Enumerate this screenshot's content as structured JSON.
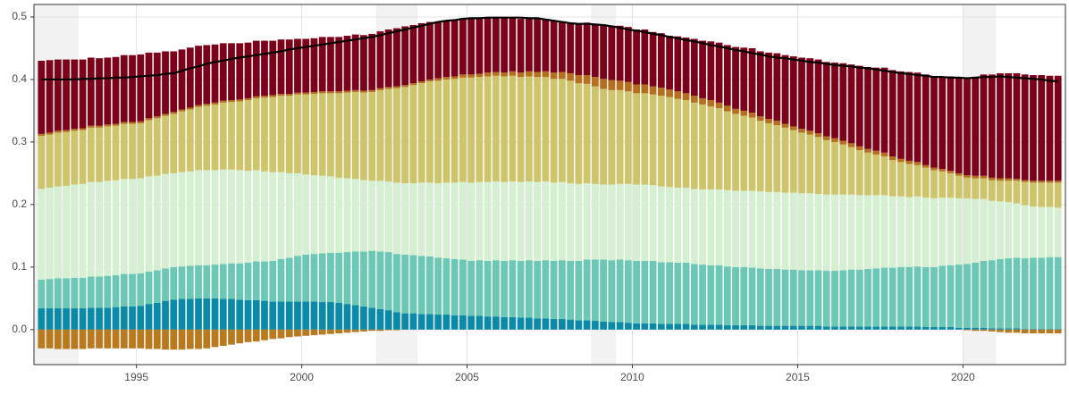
{
  "chart_data": {
    "type": "bar",
    "stacked": true,
    "x": [
      1992,
      1992.25,
      1992.5,
      1992.75,
      1993,
      1993.25,
      1993.5,
      1993.75,
      1994,
      1994.25,
      1994.5,
      1994.75,
      1995,
      1995.25,
      1995.5,
      1995.75,
      1996,
      1996.25,
      1996.5,
      1996.75,
      1997,
      1997.25,
      1997.5,
      1997.75,
      1998,
      1998.25,
      1998.5,
      1998.75,
      1999,
      1999.25,
      1999.5,
      1999.75,
      2000,
      2000.25,
      2000.5,
      2000.75,
      2001,
      2001.25,
      2001.5,
      2001.75,
      2002,
      2002.25,
      2002.5,
      2002.75,
      2003,
      2003.25,
      2003.5,
      2003.75,
      2004,
      2004.25,
      2004.5,
      2004.75,
      2005,
      2005.25,
      2005.5,
      2005.75,
      2006,
      2006.25,
      2006.5,
      2006.75,
      2007,
      2007.25,
      2007.5,
      2007.75,
      2008,
      2008.25,
      2008.5,
      2008.75,
      2009,
      2009.25,
      2009.5,
      2009.75,
      2010,
      2010.25,
      2010.5,
      2010.75,
      2011,
      2011.25,
      2011.5,
      2011.75,
      2012,
      2012.25,
      2012.5,
      2012.75,
      2013,
      2013.25,
      2013.5,
      2013.75,
      2014,
      2014.25,
      2014.5,
      2014.75,
      2015,
      2015.25,
      2015.5,
      2015.75,
      2016,
      2016.25,
      2016.5,
      2016.75,
      2017,
      2017.25,
      2017.5,
      2017.75,
      2018,
      2018.25,
      2018.5,
      2018.75,
      2019,
      2019.25,
      2019.5,
      2019.75,
      2020,
      2020.25,
      2020.5,
      2020.75,
      2021,
      2021.25,
      2021.5,
      2021.75,
      2022,
      2022.25,
      2022.5,
      2022.75
    ],
    "bar_span": 0.25,
    "series": [
      {
        "color": "#0b8aa8",
        "values": [
          0.034,
          0.034,
          0.034,
          0.034,
          0.034,
          0.034,
          0.035,
          0.035,
          0.035,
          0.036,
          0.037,
          0.037,
          0.038,
          0.041,
          0.043,
          0.046,
          0.048,
          0.049,
          0.049,
          0.05,
          0.05,
          0.05,
          0.049,
          0.049,
          0.048,
          0.047,
          0.047,
          0.046,
          0.045,
          0.045,
          0.045,
          0.045,
          0.045,
          0.045,
          0.044,
          0.044,
          0.043,
          0.041,
          0.039,
          0.037,
          0.035,
          0.033,
          0.031,
          0.028,
          0.026,
          0.026,
          0.025,
          0.025,
          0.024,
          0.024,
          0.023,
          0.023,
          0.022,
          0.022,
          0.021,
          0.021,
          0.02,
          0.02,
          0.019,
          0.019,
          0.018,
          0.018,
          0.017,
          0.017,
          0.016,
          0.015,
          0.015,
          0.014,
          0.013,
          0.012,
          0.012,
          0.011,
          0.01,
          0.01,
          0.01,
          0.009,
          0.009,
          0.009,
          0.009,
          0.008,
          0.008,
          0.008,
          0.008,
          0.007,
          0.007,
          0.007,
          0.007,
          0.006,
          0.006,
          0.006,
          0.006,
          0.006,
          0.006,
          0.006,
          0.006,
          0.005,
          0.005,
          0.005,
          0.005,
          0.005,
          0.005,
          0.005,
          0.005,
          0.005,
          0.005,
          0.005,
          0.005,
          0.004,
          0.004,
          0.004,
          0.004,
          0.003,
          0.003,
          0.003,
          0.003,
          0.002,
          0.002,
          0.002,
          0.002,
          0.001,
          0.001,
          0.001,
          0.001,
          0.001
        ]
      },
      {
        "color": "#6cc8b4",
        "values": [
          0.046,
          0.047,
          0.048,
          0.048,
          0.049,
          0.049,
          0.05,
          0.05,
          0.051,
          0.051,
          0.052,
          0.052,
          0.052,
          0.052,
          0.052,
          0.052,
          0.052,
          0.052,
          0.053,
          0.053,
          0.053,
          0.054,
          0.056,
          0.057,
          0.058,
          0.06,
          0.062,
          0.063,
          0.065,
          0.068,
          0.07,
          0.073,
          0.075,
          0.076,
          0.078,
          0.079,
          0.08,
          0.083,
          0.086,
          0.088,
          0.091,
          0.092,
          0.093,
          0.093,
          0.094,
          0.093,
          0.093,
          0.092,
          0.091,
          0.09,
          0.09,
          0.089,
          0.088,
          0.089,
          0.089,
          0.09,
          0.09,
          0.091,
          0.091,
          0.092,
          0.092,
          0.093,
          0.093,
          0.094,
          0.094,
          0.095,
          0.097,
          0.098,
          0.099,
          0.099,
          0.1,
          0.1,
          0.1,
          0.1,
          0.1,
          0.099,
          0.099,
          0.098,
          0.098,
          0.097,
          0.096,
          0.095,
          0.095,
          0.094,
          0.093,
          0.093,
          0.092,
          0.092,
          0.091,
          0.091,
          0.09,
          0.09,
          0.089,
          0.089,
          0.089,
          0.089,
          0.089,
          0.09,
          0.091,
          0.091,
          0.092,
          0.093,
          0.094,
          0.094,
          0.095,
          0.095,
          0.096,
          0.096,
          0.096,
          0.098,
          0.099,
          0.101,
          0.102,
          0.104,
          0.107,
          0.109,
          0.111,
          0.112,
          0.113,
          0.113,
          0.114,
          0.114,
          0.115,
          0.115
        ]
      },
      {
        "color": "#d5efd1",
        "values": [
          0.145,
          0.146,
          0.147,
          0.148,
          0.149,
          0.15,
          0.151,
          0.151,
          0.152,
          0.152,
          0.152,
          0.152,
          0.152,
          0.152,
          0.151,
          0.151,
          0.15,
          0.151,
          0.151,
          0.152,
          0.152,
          0.151,
          0.151,
          0.15,
          0.149,
          0.147,
          0.146,
          0.144,
          0.142,
          0.139,
          0.135,
          0.132,
          0.128,
          0.126,
          0.124,
          0.122,
          0.12,
          0.118,
          0.116,
          0.114,
          0.112,
          0.113,
          0.113,
          0.114,
          0.114,
          0.115,
          0.117,
          0.118,
          0.119,
          0.121,
          0.122,
          0.124,
          0.125,
          0.125,
          0.126,
          0.126,
          0.126,
          0.126,
          0.126,
          0.126,
          0.126,
          0.126,
          0.125,
          0.125,
          0.124,
          0.123,
          0.122,
          0.121,
          0.12,
          0.121,
          0.121,
          0.122,
          0.122,
          0.122,
          0.121,
          0.121,
          0.12,
          0.12,
          0.12,
          0.12,
          0.12,
          0.121,
          0.121,
          0.122,
          0.122,
          0.122,
          0.123,
          0.123,
          0.123,
          0.123,
          0.123,
          0.123,
          0.123,
          0.123,
          0.122,
          0.122,
          0.122,
          0.121,
          0.12,
          0.119,
          0.118,
          0.117,
          0.116,
          0.114,
          0.113,
          0.112,
          0.112,
          0.111,
          0.11,
          0.109,
          0.108,
          0.106,
          0.105,
          0.102,
          0.099,
          0.095,
          0.092,
          0.09,
          0.087,
          0.085,
          0.082,
          0.081,
          0.08,
          0.079
        ]
      },
      {
        "color": "#cdc46b",
        "values": [
          0.085,
          0.085,
          0.086,
          0.086,
          0.086,
          0.086,
          0.087,
          0.087,
          0.087,
          0.087,
          0.088,
          0.088,
          0.088,
          0.09,
          0.092,
          0.093,
          0.095,
          0.097,
          0.099,
          0.101,
          0.103,
          0.105,
          0.107,
          0.108,
          0.11,
          0.113,
          0.115,
          0.118,
          0.12,
          0.122,
          0.124,
          0.126,
          0.128,
          0.13,
          0.132,
          0.133,
          0.135,
          0.137,
          0.139,
          0.14,
          0.142,
          0.145,
          0.148,
          0.151,
          0.154,
          0.157,
          0.159,
          0.162,
          0.164,
          0.165,
          0.166,
          0.167,
          0.168,
          0.168,
          0.169,
          0.169,
          0.169,
          0.169,
          0.168,
          0.168,
          0.168,
          0.167,
          0.166,
          0.165,
          0.164,
          0.161,
          0.159,
          0.156,
          0.153,
          0.151,
          0.15,
          0.148,
          0.146,
          0.146,
          0.145,
          0.145,
          0.144,
          0.142,
          0.14,
          0.138,
          0.136,
          0.133,
          0.13,
          0.126,
          0.123,
          0.12,
          0.117,
          0.113,
          0.11,
          0.107,
          0.104,
          0.1,
          0.097,
          0.094,
          0.091,
          0.087,
          0.084,
          0.08,
          0.076,
          0.072,
          0.068,
          0.065,
          0.062,
          0.058,
          0.055,
          0.053,
          0.05,
          0.048,
          0.045,
          0.042,
          0.039,
          0.036,
          0.033,
          0.033,
          0.033,
          0.033,
          0.033,
          0.034,
          0.036,
          0.037,
          0.038,
          0.039,
          0.039,
          0.04
        ]
      },
      {
        "color": "#b5701f",
        "values": [
          0.003,
          0.003,
          0.003,
          0.003,
          0.003,
          0.003,
          0.003,
          0.003,
          0.003,
          0.003,
          0.003,
          0.003,
          0.003,
          0.003,
          0.003,
          0.003,
          0.003,
          0.003,
          0.003,
          0.003,
          0.003,
          0.003,
          0.003,
          0.003,
          0.003,
          0.003,
          0.003,
          0.003,
          0.003,
          0.003,
          0.003,
          0.003,
          0.003,
          0.003,
          0.003,
          0.003,
          0.003,
          0.003,
          0.003,
          0.003,
          0.003,
          0.003,
          0.003,
          0.003,
          0.003,
          0.003,
          0.003,
          0.003,
          0.004,
          0.004,
          0.004,
          0.005,
          0.005,
          0.005,
          0.006,
          0.006,
          0.006,
          0.007,
          0.007,
          0.008,
          0.008,
          0.009,
          0.01,
          0.011,
          0.012,
          0.013,
          0.014,
          0.015,
          0.016,
          0.016,
          0.015,
          0.015,
          0.014,
          0.014,
          0.013,
          0.013,
          0.012,
          0.012,
          0.011,
          0.011,
          0.01,
          0.01,
          0.009,
          0.009,
          0.008,
          0.008,
          0.008,
          0.007,
          0.007,
          0.007,
          0.006,
          0.006,
          0.006,
          0.006,
          0.006,
          0.006,
          0.006,
          0.006,
          0.006,
          0.006,
          0.006,
          0.006,
          0.006,
          0.006,
          0.005,
          0.005,
          0.005,
          0.004,
          0.004,
          0.004,
          0.004,
          0.004,
          0.004,
          0.004,
          0.004,
          0.004,
          0.004,
          0.004,
          0.003,
          0.003,
          0.003,
          0.003,
          0.003,
          0.003
        ]
      },
      {
        "color": "#7b0019",
        "values": [
          0.117,
          0.116,
          0.114,
          0.113,
          0.111,
          0.11,
          0.109,
          0.108,
          0.107,
          0.107,
          0.107,
          0.107,
          0.107,
          0.105,
          0.102,
          0.1,
          0.097,
          0.096,
          0.096,
          0.095,
          0.094,
          0.093,
          0.092,
          0.091,
          0.09,
          0.089,
          0.089,
          0.088,
          0.087,
          0.087,
          0.087,
          0.086,
          0.086,
          0.086,
          0.087,
          0.087,
          0.087,
          0.088,
          0.089,
          0.089,
          0.09,
          0.091,
          0.092,
          0.093,
          0.094,
          0.093,
          0.093,
          0.092,
          0.091,
          0.091,
          0.09,
          0.09,
          0.089,
          0.089,
          0.088,
          0.088,
          0.087,
          0.087,
          0.086,
          0.086,
          0.085,
          0.084,
          0.083,
          0.081,
          0.08,
          0.082,
          0.084,
          0.085,
          0.087,
          0.087,
          0.088,
          0.088,
          0.088,
          0.088,
          0.087,
          0.087,
          0.086,
          0.088,
          0.089,
          0.091,
          0.092,
          0.094,
          0.096,
          0.097,
          0.099,
          0.101,
          0.103,
          0.104,
          0.106,
          0.108,
          0.11,
          0.112,
          0.114,
          0.116,
          0.118,
          0.119,
          0.121,
          0.124,
          0.126,
          0.129,
          0.131,
          0.133,
          0.136,
          0.138,
          0.14,
          0.142,
          0.143,
          0.145,
          0.146,
          0.148,
          0.151,
          0.153,
          0.155,
          0.158,
          0.162,
          0.165,
          0.168,
          0.168,
          0.169,
          0.169,
          0.169,
          0.169,
          0.168,
          0.168
        ]
      },
      {
        "color": "#b8791f",
        "values": [
          -0.03,
          -0.03,
          -0.031,
          -0.031,
          -0.031,
          -0.031,
          -0.03,
          -0.03,
          -0.03,
          -0.03,
          -0.03,
          -0.03,
          -0.03,
          -0.031,
          -0.031,
          -0.032,
          -0.032,
          -0.032,
          -0.031,
          -0.031,
          -0.03,
          -0.028,
          -0.026,
          -0.024,
          -0.022,
          -0.02,
          -0.019,
          -0.017,
          -0.015,
          -0.014,
          -0.012,
          -0.011,
          -0.01,
          -0.009,
          -0.008,
          -0.007,
          -0.006,
          -0.005,
          -0.004,
          -0.003,
          -0.002,
          -0.002,
          -0.001,
          -0.001,
          0,
          0,
          0,
          0,
          0,
          0,
          0,
          0,
          0,
          0,
          0,
          0,
          0,
          0,
          0,
          0,
          0,
          0,
          0,
          0,
          0,
          0,
          0,
          0,
          0,
          0,
          0,
          0,
          0,
          0,
          0,
          0,
          0,
          0,
          0,
          0,
          0,
          0,
          0,
          0,
          0,
          0,
          0,
          0,
          0,
          0,
          0,
          0,
          0,
          0,
          0,
          0,
          0,
          0,
          0,
          0,
          0,
          0,
          0,
          0,
          0,
          0,
          0,
          0,
          0,
          0,
          0,
          0,
          -0.001,
          -0.002,
          -0.002,
          -0.003,
          -0.004,
          -0.005,
          -0.005,
          -0.006,
          -0.006,
          -0.006,
          -0.006,
          -0.006
        ]
      },
      {
        "type": "line",
        "color": "#000000",
        "values": [
          0.4,
          0.4,
          0.4,
          0.4,
          0.4,
          0.401,
          0.401,
          0.402,
          0.402,
          0.403,
          0.403,
          0.404,
          0.405,
          0.406,
          0.407,
          0.409,
          0.41,
          0.414,
          0.418,
          0.421,
          0.425,
          0.428,
          0.43,
          0.433,
          0.435,
          0.437,
          0.439,
          0.441,
          0.443,
          0.445,
          0.448,
          0.45,
          0.452,
          0.454,
          0.456,
          0.458,
          0.46,
          0.462,
          0.464,
          0.466,
          0.468,
          0.471,
          0.474,
          0.477,
          0.48,
          0.483,
          0.486,
          0.489,
          0.492,
          0.494,
          0.495,
          0.497,
          0.498,
          0.498,
          0.499,
          0.499,
          0.499,
          0.499,
          0.499,
          0.498,
          0.498,
          0.496,
          0.494,
          0.492,
          0.49,
          0.489,
          0.489,
          0.488,
          0.487,
          0.485,
          0.483,
          0.48,
          0.478,
          0.476,
          0.473,
          0.471,
          0.468,
          0.466,
          0.463,
          0.461,
          0.458,
          0.455,
          0.453,
          0.45,
          0.447,
          0.445,
          0.442,
          0.44,
          0.437,
          0.435,
          0.434,
          0.432,
          0.43,
          0.428,
          0.427,
          0.425,
          0.423,
          0.422,
          0.421,
          0.419,
          0.418,
          0.416,
          0.414,
          0.412,
          0.41,
          0.409,
          0.407,
          0.406,
          0.404,
          0.404,
          0.403,
          0.403,
          0.402,
          0.403,
          0.404,
          0.404,
          0.405,
          0.404,
          0.403,
          0.402,
          0.401,
          0.4,
          0.398,
          0.397
        ]
      }
    ],
    "shaded_regions": [
      [
        1991.75,
        1993.25
      ],
      [
        2002.25,
        2003.5
      ],
      [
        2008.75,
        2009.5
      ],
      [
        2020,
        2021
      ]
    ],
    "shade_color": "#f2f2f2",
    "xlim": [
      1991.9,
      2023.1
    ],
    "xticks": [
      1995,
      2000,
      2005,
      2010,
      2015,
      2020
    ],
    "ylim": [
      -0.056,
      0.52
    ],
    "yticks": [
      {
        "value": 0,
        "label": "0.0"
      },
      0.1,
      0.2,
      0.3,
      0.4,
      0.5
    ],
    "grid": true
  }
}
